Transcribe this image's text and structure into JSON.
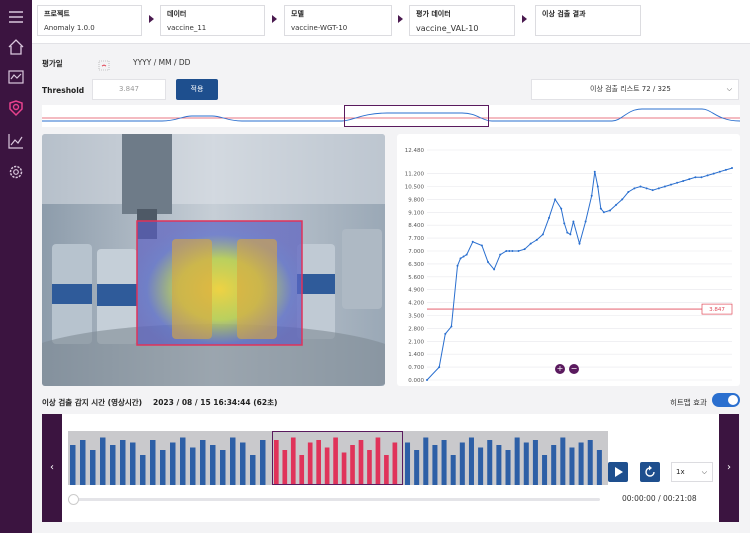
{
  "sidebar": {
    "items": [
      {
        "name": "menu-icon"
      },
      {
        "name": "home-icon"
      },
      {
        "name": "transform-icon"
      },
      {
        "name": "anomaly-detection-icon",
        "active": true
      },
      {
        "name": "analytics-icon"
      },
      {
        "name": "settings-icon"
      }
    ],
    "accent_color": "#e8418d"
  },
  "breadcrumb": [
    {
      "label": "프로젝트",
      "value": "Anomaly 1.0.0"
    },
    {
      "label": "데이터",
      "value": "vaccine_11"
    },
    {
      "label": "모델",
      "value": "vaccine-WGT-10"
    },
    {
      "label": "평가 데이터",
      "value": "vaccine_VAL-10"
    },
    {
      "label": "이상 검출 결과",
      "value": ""
    }
  ],
  "filters": {
    "eval_date_label": "평가일",
    "date_placeholder": "YYYY / MM / DD",
    "threshold_label": "Threshold",
    "threshold_value": "3.847",
    "apply_button": "적용",
    "anomaly_list": "이상 검출 리스트 72 / 325"
  },
  "detection": {
    "time_label": "이상 검출 감지 시간 (영상시간)",
    "time_value": "2023 / 08 / 15 16:34:44 (62초)",
    "heatmap_label": "히트맵 효과",
    "heatmap_on": true
  },
  "player": {
    "time_display": "00:00:00 / 00:21:08",
    "speed": "1x",
    "progress_fraction": 0.0
  },
  "chart_data": {
    "type": "line",
    "ylim": [
      0,
      12.48
    ],
    "yticks": [
      "0.000",
      "0.700",
      "1.400",
      "2.100",
      "2.800",
      "3.500",
      "4.200",
      "4.900",
      "5.600",
      "6.300",
      "7.000",
      "7.700",
      "8.400",
      "9.100",
      "9.800",
      "10.500",
      "11.200",
      "12.480"
    ],
    "threshold": 3.847,
    "threshold_label": "3.847",
    "x": [
      0,
      4,
      6,
      8,
      10,
      11,
      12,
      13,
      15,
      18,
      20,
      22,
      24,
      26,
      27,
      28,
      30,
      32,
      34,
      36,
      38,
      40,
      42,
      44,
      45,
      46,
      47,
      48,
      50,
      52,
      54,
      55,
      56,
      57,
      58,
      60,
      62,
      64,
      66,
      68,
      70,
      72,
      74,
      76,
      78,
      80,
      82,
      84,
      86,
      88,
      90,
      92,
      94,
      96,
      98,
      100
    ],
    "y": [
      0.0,
      0.7,
      2.5,
      2.9,
      6.2,
      6.6,
      6.7,
      6.8,
      7.5,
      7.3,
      6.4,
      6.0,
      6.8,
      7.0,
      7.0,
      7.0,
      7.0,
      7.1,
      7.4,
      7.6,
      7.9,
      8.8,
      9.8,
      9.3,
      8.5,
      8.0,
      7.9,
      8.6,
      7.4,
      8.6,
      10.0,
      11.3,
      10.5,
      9.3,
      9.1,
      9.2,
      9.5,
      9.8,
      10.2,
      10.4,
      10.5,
      10.4,
      10.3,
      10.4,
      10.5,
      10.6,
      10.7,
      10.8,
      10.9,
      11.0,
      11.0,
      11.1,
      11.2,
      11.3,
      11.4,
      11.5
    ],
    "series_color": "#2a6fcf",
    "threshold_color": "#e04a5a"
  },
  "timeline": {
    "bars_before": [
      0.8,
      0.9,
      0.7,
      0.95,
      0.8,
      0.9,
      0.85,
      0.6,
      0.9,
      0.7,
      0.85,
      0.95,
      0.75,
      0.9,
      0.8,
      0.7,
      0.95,
      0.85,
      0.6,
      0.9
    ],
    "bars_selected": [
      0.9,
      0.7,
      0.95,
      0.6,
      0.85,
      0.9,
      0.75,
      0.95,
      0.65,
      0.8,
      0.9,
      0.7,
      0.95,
      0.6,
      0.85
    ],
    "bars_after": [
      0.85,
      0.7,
      0.95,
      0.8,
      0.9,
      0.6,
      0.85,
      0.95,
      0.75,
      0.9,
      0.8,
      0.7,
      0.95,
      0.85,
      0.9,
      0.6,
      0.8,
      0.95,
      0.75,
      0.85,
      0.9,
      0.7
    ],
    "bar_color": "#2d5fa6",
    "selected_color": "#e0335a"
  }
}
